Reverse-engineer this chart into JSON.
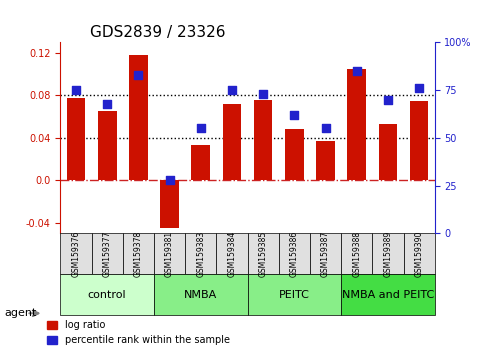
{
  "title": "GDS2839 / 23326",
  "samples": [
    "GSM159376",
    "GSM159377",
    "GSM159378",
    "GSM159381",
    "GSM159383",
    "GSM159384",
    "GSM159385",
    "GSM159386",
    "GSM159387",
    "GSM159388",
    "GSM159389",
    "GSM159390"
  ],
  "log_ratio": [
    0.078,
    0.065,
    0.118,
    -0.045,
    0.033,
    0.072,
    0.076,
    0.048,
    0.037,
    0.105,
    0.053,
    0.075
  ],
  "percentile_rank": [
    75,
    68,
    83,
    28,
    55,
    75,
    73,
    62,
    55,
    85,
    70,
    76
  ],
  "bar_color": "#cc1100",
  "dot_color": "#2222cc",
  "ylim_left": [
    -0.05,
    0.13
  ],
  "ylim_right": [
    0,
    100
  ],
  "yticks_left": [
    -0.04,
    0.0,
    0.04,
    0.08,
    0.12
  ],
  "yticks_right": [
    0,
    25,
    50,
    75,
    100
  ],
  "ytick_labels_right": [
    "0",
    "25",
    "50",
    "75",
    "100%"
  ],
  "hlines": [
    0.04,
    0.08
  ],
  "hline_zero_color": "#cc2222",
  "hline_zero_style": "dashdot",
  "hline_dotted_color": "black",
  "groups": [
    {
      "label": "control",
      "start": 0,
      "end": 3,
      "color": "#ccffcc"
    },
    {
      "label": "NMBA",
      "start": 3,
      "end": 6,
      "color": "#88ee88"
    },
    {
      "label": "PEITC",
      "start": 6,
      "end": 9,
      "color": "#88ee88"
    },
    {
      "label": "NMBA and PEITC",
      "start": 9,
      "end": 12,
      "color": "#44dd44"
    }
  ],
  "legend_items": [
    {
      "label": "log ratio",
      "color": "#cc1100"
    },
    {
      "label": "percentile rank within the sample",
      "color": "#2222cc"
    }
  ],
  "agent_label": "agent",
  "title_fontsize": 11,
  "axis_label_fontsize": 8,
  "tick_fontsize": 7,
  "group_label_fontsize": 8,
  "legend_fontsize": 7,
  "left_axis_color": "#cc1100",
  "right_axis_color": "#2222cc",
  "bar_width": 0.6,
  "dot_size": 30
}
